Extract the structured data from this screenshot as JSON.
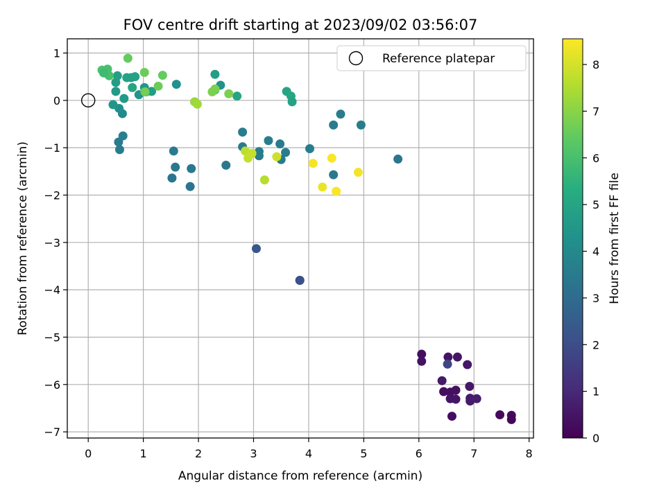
{
  "chart_data": {
    "type": "scatter",
    "title": "FOV centre drift starting at 2023/09/02 03:56:07",
    "xlabel": "Angular distance from reference (arcmin)",
    "ylabel": "Rotation from reference (arcmin)",
    "xlim": [
      -0.38,
      8.08
    ],
    "ylim": [
      -7.13,
      1.3
    ],
    "xticks": [
      0,
      1,
      2,
      3,
      4,
      5,
      6,
      7,
      8
    ],
    "yticks": [
      1,
      0,
      -1,
      -2,
      -3,
      -4,
      -5,
      -6,
      -7
    ],
    "grid": true,
    "legend": {
      "position": "top-right",
      "entries": [
        "Reference platepar"
      ]
    },
    "reference_point": {
      "x": 0,
      "y": 0,
      "marker": "hollow-circle"
    },
    "colorbar": {
      "label": "Hours from first FF file",
      "range": [
        0,
        8.55
      ],
      "ticks": [
        0,
        1,
        2,
        3,
        4,
        5,
        6,
        7,
        8
      ],
      "colormap": "viridis"
    },
    "points": [
      {
        "x": 6.05,
        "y": -5.36,
        "c": 0.35
      },
      {
        "x": 6.05,
        "y": -5.51,
        "c": 0.4
      },
      {
        "x": 6.53,
        "y": -5.42,
        "c": 0.45
      },
      {
        "x": 6.7,
        "y": -5.42,
        "c": 0.5
      },
      {
        "x": 6.52,
        "y": -5.57,
        "c": 1.8
      },
      {
        "x": 6.88,
        "y": -5.58,
        "c": 0.55
      },
      {
        "x": 6.42,
        "y": -5.92,
        "c": 0.6
      },
      {
        "x": 6.45,
        "y": -6.15,
        "c": 0.3
      },
      {
        "x": 6.57,
        "y": -6.16,
        "c": 0.35
      },
      {
        "x": 6.67,
        "y": -6.12,
        "c": 0.4
      },
      {
        "x": 6.57,
        "y": -6.3,
        "c": 0.45
      },
      {
        "x": 6.67,
        "y": -6.31,
        "c": 0.5
      },
      {
        "x": 6.92,
        "y": -6.04,
        "c": 0.55
      },
      {
        "x": 6.93,
        "y": -6.29,
        "c": 0.6
      },
      {
        "x": 6.93,
        "y": -6.35,
        "c": 0.65
      },
      {
        "x": 7.05,
        "y": -6.3,
        "c": 0.7
      },
      {
        "x": 6.6,
        "y": -6.67,
        "c": 0.3
      },
      {
        "x": 7.47,
        "y": -6.64,
        "c": 0.2
      },
      {
        "x": 7.68,
        "y": -6.65,
        "c": 0.25
      },
      {
        "x": 7.68,
        "y": -6.74,
        "c": 0.15
      },
      {
        "x": 3.05,
        "y": -3.13,
        "c": 2.3
      },
      {
        "x": 3.84,
        "y": -3.8,
        "c": 2.2
      },
      {
        "x": 3.84,
        "y": -3.8,
        "c": 2.1
      },
      {
        "x": 0.55,
        "y": -0.88,
        "c": 3.5
      },
      {
        "x": 0.57,
        "y": -1.04,
        "c": 3.6
      },
      {
        "x": 0.63,
        "y": -0.75,
        "c": 3.7
      },
      {
        "x": 0.62,
        "y": -0.28,
        "c": 4.0
      },
      {
        "x": 0.56,
        "y": -0.17,
        "c": 4.2
      },
      {
        "x": 0.45,
        "y": -0.09,
        "c": 4.5
      },
      {
        "x": 0.5,
        "y": 0.19,
        "c": 4.6
      },
      {
        "x": 0.5,
        "y": 0.38,
        "c": 4.7
      },
      {
        "x": 0.53,
        "y": 0.52,
        "c": 4.8
      },
      {
        "x": 0.65,
        "y": 0.04,
        "c": 4.6
      },
      {
        "x": 0.7,
        "y": 0.48,
        "c": 4.9
      },
      {
        "x": 0.78,
        "y": 0.48,
        "c": 4.85
      },
      {
        "x": 0.85,
        "y": 0.5,
        "c": 4.9
      },
      {
        "x": 0.8,
        "y": 0.27,
        "c": 5.0
      },
      {
        "x": 0.92,
        "y": 0.12,
        "c": 4.4
      },
      {
        "x": 1.02,
        "y": 0.27,
        "c": 4.5
      },
      {
        "x": 1.05,
        "y": 0.18,
        "c": 4.6
      },
      {
        "x": 1.15,
        "y": 0.19,
        "c": 4.7
      },
      {
        "x": 1.6,
        "y": 0.34,
        "c": 4.3
      },
      {
        "x": 0.3,
        "y": 0.6,
        "c": 5.8
      },
      {
        "x": 0.35,
        "y": 0.56,
        "c": 5.9
      },
      {
        "x": 0.38,
        "y": 0.52,
        "c": 6.0
      },
      {
        "x": 0.25,
        "y": 0.64,
        "c": 6.1
      },
      {
        "x": 0.35,
        "y": 0.66,
        "c": 6.0
      },
      {
        "x": 0.28,
        "y": 0.58,
        "c": 5.8
      },
      {
        "x": 0.72,
        "y": 0.89,
        "c": 6.5
      },
      {
        "x": 1.02,
        "y": 0.59,
        "c": 6.6
      },
      {
        "x": 1.35,
        "y": 0.53,
        "c": 6.5
      },
      {
        "x": 1.27,
        "y": 0.3,
        "c": 6.6
      },
      {
        "x": 1.03,
        "y": 0.18,
        "c": 6.7
      },
      {
        "x": 1.55,
        "y": -1.07,
        "c": 3.5
      },
      {
        "x": 1.58,
        "y": -1.41,
        "c": 3.4
      },
      {
        "x": 1.52,
        "y": -1.64,
        "c": 3.3
      },
      {
        "x": 1.87,
        "y": -1.44,
        "c": 3.4
      },
      {
        "x": 1.85,
        "y": -1.82,
        "c": 3.3
      },
      {
        "x": 2.5,
        "y": -1.37,
        "c": 3.4
      },
      {
        "x": 2.8,
        "y": -0.67,
        "c": 3.6
      },
      {
        "x": 2.8,
        "y": -0.98,
        "c": 3.5
      },
      {
        "x": 3.1,
        "y": -1.08,
        "c": 3.6
      },
      {
        "x": 3.1,
        "y": -1.17,
        "c": 3.5
      },
      {
        "x": 3.27,
        "y": -0.85,
        "c": 3.6
      },
      {
        "x": 3.48,
        "y": -0.92,
        "c": 3.5
      },
      {
        "x": 3.58,
        "y": -1.1,
        "c": 3.6
      },
      {
        "x": 3.5,
        "y": -1.25,
        "c": 3.5
      },
      {
        "x": 4.02,
        "y": -1.02,
        "c": 3.6
      },
      {
        "x": 4.45,
        "y": -0.52,
        "c": 3.5
      },
      {
        "x": 4.45,
        "y": -1.57,
        "c": 3.4
      },
      {
        "x": 4.58,
        "y": -0.29,
        "c": 3.5
      },
      {
        "x": 4.95,
        "y": -0.52,
        "c": 3.6
      },
      {
        "x": 5.62,
        "y": -1.24,
        "c": 3.3
      },
      {
        "x": 2.3,
        "y": 0.55,
        "c": 4.7
      },
      {
        "x": 2.4,
        "y": 0.32,
        "c": 4.3
      },
      {
        "x": 2.3,
        "y": 0.22,
        "c": 5.5
      },
      {
        "x": 2.7,
        "y": 0.09,
        "c": 5.0
      },
      {
        "x": 3.6,
        "y": 0.19,
        "c": 5.0
      },
      {
        "x": 3.68,
        "y": 0.09,
        "c": 5.1
      },
      {
        "x": 3.7,
        "y": -0.03,
        "c": 4.9
      },
      {
        "x": 2.25,
        "y": 0.18,
        "c": 6.8
      },
      {
        "x": 2.3,
        "y": 0.24,
        "c": 6.8
      },
      {
        "x": 2.55,
        "y": 0.14,
        "c": 6.8
      },
      {
        "x": 1.93,
        "y": -0.03,
        "c": 7.2
      },
      {
        "x": 1.98,
        "y": -0.08,
        "c": 7.3
      },
      {
        "x": 2.85,
        "y": -1.07,
        "c": 7.7
      },
      {
        "x": 2.9,
        "y": -1.22,
        "c": 7.8
      },
      {
        "x": 2.97,
        "y": -1.12,
        "c": 7.8
      },
      {
        "x": 3.2,
        "y": -1.68,
        "c": 7.6
      },
      {
        "x": 3.42,
        "y": -1.19,
        "c": 7.9
      },
      {
        "x": 4.08,
        "y": -1.33,
        "c": 8.4
      },
      {
        "x": 4.42,
        "y": -1.22,
        "c": 8.5
      },
      {
        "x": 4.25,
        "y": -1.83,
        "c": 8.3
      },
      {
        "x": 4.5,
        "y": -1.92,
        "c": 8.5
      },
      {
        "x": 4.9,
        "y": -1.52,
        "c": 8.4
      }
    ]
  }
}
